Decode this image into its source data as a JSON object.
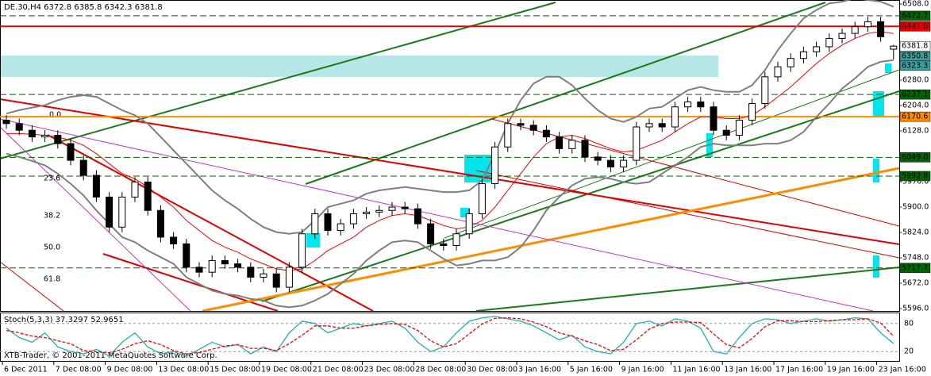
{
  "chart_data": [
    {
      "type": "candlestick",
      "title": "DE.30,H4",
      "categories": [
        "6 Dec 2011",
        null,
        null,
        null,
        "7 Dec 08:00",
        null,
        null,
        null,
        "9 Dec 08:00",
        null,
        null,
        null,
        "13 Dec 08:00",
        null,
        null,
        null,
        "15 Dec 08:00",
        null,
        null,
        null,
        "19 Dec 08:00",
        null,
        null,
        null,
        "21 Dec 08:00",
        null,
        null,
        null,
        "23 Dec 08:00",
        null,
        null,
        null,
        "28 Dec 08:00",
        null,
        null,
        null,
        "30 Dec 08:00",
        null,
        null,
        null,
        "3 Jan 16:00",
        null,
        null,
        null,
        "5 Jan 16:00",
        null,
        null,
        null,
        "9 Jan 16:00",
        null,
        null,
        null,
        "11 Jan 16:00",
        null,
        null,
        null,
        "13 Jan 16:00",
        null,
        null,
        null,
        "17 Jan 16:00",
        null,
        null,
        null,
        "19 Jan 16:00",
        null,
        null,
        null,
        "23 Jan 16:00",
        null
      ],
      "open": [
        6160,
        6150,
        6130,
        6110,
        6115,
        6090,
        6040,
        5995,
        5930,
        5840,
        5930,
        5975,
        5890,
        5810,
        5790,
        5720,
        5705,
        5740,
        5730,
        5720,
        5690,
        5700,
        5660,
        5720,
        5820,
        5880,
        5830,
        5850,
        5880,
        5885,
        5890,
        5900,
        5895,
        5850,
        5790,
        5785,
        5820,
        5880,
        5970,
        6080,
        6150,
        6145,
        6130,
        6110,
        6075,
        6100,
        6050,
        6040,
        6020,
        6040,
        6140,
        6150,
        6140,
        6200,
        6215,
        6200,
        6130,
        6115,
        6160,
        6210,
        6290,
        6320,
        6345,
        6365,
        6380,
        6405,
        6420,
        6440,
        6455,
        6372.8
      ],
      "high": [
        6175,
        6165,
        6145,
        6130,
        6130,
        6105,
        6055,
        6010,
        5945,
        5945,
        5990,
        5990,
        5905,
        5825,
        5805,
        5735,
        5755,
        5755,
        5745,
        5735,
        5715,
        5715,
        5735,
        5835,
        5895,
        5895,
        5865,
        5895,
        5900,
        5905,
        5915,
        5915,
        5910,
        5865,
        5805,
        5835,
        5895,
        5985,
        6095,
        6165,
        6165,
        6160,
        6145,
        6125,
        6115,
        6115,
        6065,
        6055,
        6055,
        6155,
        6165,
        6165,
        6215,
        6230,
        6230,
        6215,
        6145,
        6175,
        6225,
        6305,
        6335,
        6360,
        6380,
        6395,
        6420,
        6435,
        6455,
        6470,
        6470,
        6385.8
      ],
      "low": [
        6135,
        6115,
        6095,
        6095,
        6075,
        6025,
        5980,
        5915,
        5825,
        5825,
        5915,
        5875,
        5795,
        5775,
        5705,
        5690,
        5690,
        5715,
        5705,
        5675,
        5675,
        5645,
        5645,
        5705,
        5805,
        5815,
        5815,
        5835,
        5865,
        5870,
        5875,
        5880,
        5835,
        5775,
        5770,
        5770,
        5805,
        5865,
        5955,
        6065,
        6130,
        6115,
        6095,
        6060,
        6060,
        6035,
        6025,
        6005,
        6005,
        6025,
        6125,
        6125,
        6125,
        6185,
        6185,
        6115,
        6100,
        6100,
        6145,
        6195,
        6275,
        6305,
        6330,
        6350,
        6365,
        6390,
        6405,
        6425,
        6395,
        6342.3
      ],
      "close": [
        6150,
        6130,
        6110,
        6115,
        6090,
        6040,
        5995,
        5930,
        5840,
        5930,
        5975,
        5890,
        5810,
        5790,
        5720,
        5705,
        5740,
        5730,
        5720,
        5690,
        5700,
        5660,
        5720,
        5820,
        5880,
        5830,
        5850,
        5880,
        5885,
        5890,
        5900,
        5895,
        5850,
        5790,
        5785,
        5820,
        5880,
        5970,
        6080,
        6150,
        6145,
        6130,
        6110,
        6075,
        6100,
        6050,
        6040,
        6020,
        6040,
        6140,
        6150,
        6140,
        6200,
        6215,
        6200,
        6130,
        6115,
        6160,
        6210,
        6290,
        6320,
        6345,
        6365,
        6380,
        6405,
        6420,
        6440,
        6455,
        6410,
        6381.8
      ],
      "up_color": "#ffffff",
      "down_color": "#000000",
      "ylim": [
        5589,
        6520
      ],
      "yticks": [
        {
          "value": 6508,
          "label": "6508.0"
        },
        {
          "value": 6280,
          "label": "6280.0"
        },
        {
          "value": 6204,
          "label": "6204.0"
        },
        {
          "value": 6128,
          "label": "6128.0"
        },
        {
          "value": 5976,
          "label": "5976.0"
        },
        {
          "value": 5900,
          "label": "5900.0"
        },
        {
          "value": 5824,
          "label": "5824.0"
        },
        {
          "value": 5748,
          "label": "5748.0"
        },
        {
          "value": 5672,
          "label": "5672.0"
        },
        {
          "value": 5596,
          "label": "5596.0"
        }
      ],
      "lines": [
        {
          "color": "#7f7f7f",
          "values": [
            6180,
            6190,
            6198,
            6205,
            6220,
            6230,
            6235,
            6230,
            6210,
            6190,
            6175,
            6150,
            6110,
            6070,
            6030,
            5990,
            5950,
            5920,
            5895,
            5865,
            5840,
            5825,
            5820,
            5825,
            5860,
            5900,
            5910,
            5920,
            5940,
            5950,
            5955,
            5960,
            5955,
            5950,
            5945,
            5945,
            5950,
            5980,
            6060,
            6150,
            6220,
            6270,
            6290,
            6290,
            6265,
            6225,
            6190,
            6165,
            6155,
            6170,
            6195,
            6200,
            6225,
            6250,
            6260,
            6250,
            6245,
            6245,
            6265,
            6310,
            6370,
            6420,
            6465,
            6490,
            6510,
            6515,
            6525,
            6520,
            6515,
            6500
          ]
        },
        {
          "color": "#ff0000",
          "values": [
            6120,
            6120,
            6118,
            6115,
            6110,
            6100,
            6085,
            6060,
            6030,
            6000,
            5985,
            5960,
            5930,
            5900,
            5860,
            5830,
            5800,
            5780,
            5765,
            5745,
            5730,
            5715,
            5710,
            5715,
            5740,
            5770,
            5790,
            5810,
            5840,
            5860,
            5875,
            5880,
            5875,
            5860,
            5845,
            5835,
            5840,
            5860,
            5900,
            5950,
            6000,
            6050,
            6090,
            6110,
            6115,
            6105,
            6090,
            6075,
            6065,
            6070,
            6085,
            6100,
            6125,
            6150,
            6170,
            6170,
            6165,
            6165,
            6175,
            6200,
            6230,
            6260,
            6295,
            6330,
            6360,
            6385,
            6405,
            6420,
            6425,
            6420
          ]
        },
        {
          "color": "#7f7f7f",
          "values": [
            6060,
            6050,
            6038,
            6025,
            6000,
            5970,
            5935,
            5890,
            5850,
            5810,
            5795,
            5770,
            5750,
            5730,
            5690,
            5670,
            5650,
            5640,
            5635,
            5625,
            5620,
            5605,
            5600,
            5605,
            5620,
            5640,
            5670,
            5700,
            5740,
            5770,
            5795,
            5800,
            5795,
            5770,
            5745,
            5725,
            5730,
            5740,
            5740,
            5750,
            5780,
            5830,
            5890,
            5930,
            5965,
            5985,
            5990,
            5985,
            5975,
            5970,
            5975,
            6000,
            6025,
            6050,
            6080,
            6090,
            6085,
            6085,
            6085,
            6090,
            6090,
            6100,
            6125,
            6170,
            6210,
            6255,
            6285,
            6320,
            6335,
            6340
          ]
        }
      ],
      "levels": [
        {
          "value": 6472.7,
          "label": "6472.7",
          "color": "#006400",
          "style": "dashed"
        },
        {
          "value": 6441,
          "label": "6441.0",
          "color": "#e00000",
          "style": "solid"
        },
        {
          "value": 6381.8,
          "label": "6381.8",
          "color": "#000000",
          "style": "none"
        },
        {
          "value": 6350.8,
          "label": "6350.8",
          "color": "#3a9e9e",
          "style": "none"
        },
        {
          "value": 6323.3,
          "label": "6323.3",
          "color": "#3a9e9e",
          "style": "none"
        },
        {
          "value": 6237.1,
          "label": "6237.1",
          "color": "#006400",
          "style": "dashed"
        },
        {
          "value": 6170.6,
          "label": "6170.6",
          "color": "#ff8c00",
          "style": "solid"
        },
        {
          "value": 6049,
          "label": "6049.0",
          "color": "#006400",
          "style": "dashed"
        },
        {
          "value": 5992.8,
          "label": "5992.8",
          "color": "#006400",
          "style": "dashed"
        },
        {
          "value": 5717.7,
          "label": "5717.7",
          "color": "#006400",
          "style": "dashed"
        }
      ],
      "fib_labels": [
        "0.0",
        "23.6",
        "38.2",
        "50.0",
        "61.8"
      ],
      "footer": "XTB-Trader, © 2001-2011 MetaQuotes Software Corp."
    },
    {
      "type": "line",
      "title": "Stoch(5,3,3)",
      "ylim": [
        0,
        100
      ],
      "yticks": [
        80,
        20
      ],
      "series": [
        {
          "color": "#20b2aa",
          "dashed": false,
          "values": [
            70,
            50,
            40,
            60,
            30,
            20,
            15,
            25,
            10,
            40,
            60,
            30,
            15,
            20,
            10,
            25,
            40,
            30,
            35,
            15,
            30,
            20,
            60,
            85,
            80,
            60,
            70,
            80,
            75,
            80,
            85,
            70,
            40,
            20,
            30,
            60,
            85,
            92,
            95,
            90,
            85,
            75,
            60,
            45,
            55,
            30,
            20,
            15,
            40,
            80,
            85,
            75,
            90,
            85,
            70,
            20,
            15,
            50,
            80,
            90,
            88,
            80,
            85,
            90,
            85,
            88,
            92,
            90,
            60,
            37.3297
          ]
        },
        {
          "color": "#ff0000",
          "dashed": true,
          "values": [
            65,
            60,
            53,
            50,
            43,
            37,
            22,
            20,
            17,
            25,
            37,
            43,
            35,
            22,
            15,
            18,
            25,
            32,
            35,
            27,
            27,
            22,
            37,
            55,
            75,
            75,
            70,
            70,
            75,
            78,
            80,
            78,
            65,
            43,
            30,
            37,
            58,
            79,
            91,
            92,
            90,
            83,
            73,
            60,
            53,
            43,
            35,
            22,
            25,
            45,
            68,
            80,
            83,
            83,
            82,
            58,
            35,
            28,
            48,
            73,
            86,
            86,
            84,
            84,
            86,
            88,
            88,
            90,
            81,
            52.9651
          ]
        }
      ]
    }
  ]
}
